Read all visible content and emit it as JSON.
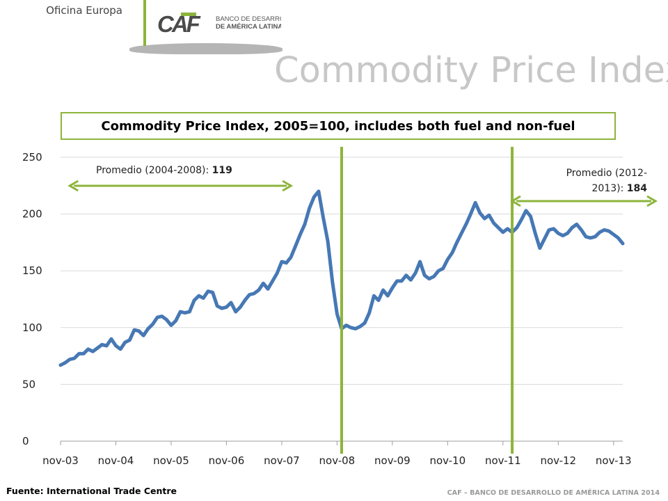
{
  "header": {
    "office": "Oficina Europa",
    "logo_mark": "CAF",
    "logo_line1": "BANCO DE DESARROLLO",
    "logo_line2": "DE AMÉRICA LATINA",
    "title": "Commodity Price Index,"
  },
  "footer": {
    "source": "Fuente: International Trade Centre",
    "brand": "CAF – BANCO DE DESARROLLO DE AMÉRICA LATINA 2014"
  },
  "colors": {
    "line": "#4678b4",
    "accent": "#8db43b",
    "grid": "#d9d9d9"
  },
  "chart_data": {
    "type": "line",
    "title": "Commodity Price Index, 2005=100, includes both fuel and non-fuel",
    "ylim": [
      0,
      250
    ],
    "yticks": [
      0,
      50,
      100,
      150,
      200,
      250
    ],
    "grid": true,
    "x_start": "nov-03",
    "x_end": "jan-14",
    "x_tick_labels": [
      "nov-03",
      "nov-04",
      "nov-05",
      "nov-06",
      "nov-07",
      "nov-08",
      "nov-09",
      "nov-10",
      "nov-11",
      "nov-12",
      "nov-13"
    ],
    "series": [
      {
        "name": "",
        "values": [
          67,
          69,
          72,
          73,
          77,
          77,
          81,
          79,
          82,
          85,
          84,
          90,
          84,
          81,
          87,
          89,
          98,
          97,
          93,
          99,
          103,
          109,
          110,
          107,
          102,
          106,
          114,
          113,
          114,
          124,
          128,
          126,
          132,
          131,
          119,
          117,
          118,
          122,
          114,
          118,
          124,
          129,
          130,
          133,
          139,
          134,
          141,
          148,
          158,
          157,
          162,
          172,
          182,
          191,
          205,
          215,
          220,
          197,
          176,
          140,
          112,
          99,
          102,
          100,
          99,
          101,
          104,
          113,
          128,
          124,
          133,
          128,
          135,
          141,
          141,
          146,
          142,
          148,
          158,
          146,
          143,
          145,
          150,
          152,
          160,
          166,
          175,
          183,
          191,
          200,
          210,
          201,
          196,
          199,
          192,
          188,
          184,
          187,
          184,
          188,
          195,
          203,
          198,
          183,
          170,
          178,
          186,
          187,
          183,
          181,
          183,
          188,
          191,
          186,
          180,
          179,
          180,
          184,
          186,
          185,
          182,
          179,
          174
        ]
      }
    ],
    "annotations": [
      {
        "label": "Promedio (2004-2008): ",
        "value": "119",
        "range": [
          "jan-04",
          "jan-08"
        ]
      },
      {
        "label": "Promedio (2012-2013): ",
        "label_line1": "Promedio (2012-",
        "label_line2": "2013): ",
        "value": "184",
        "range": [
          "jan-12",
          "dec-13"
        ]
      }
    ],
    "vertical_markers": [
      "dec-08",
      "jan-12"
    ]
  }
}
